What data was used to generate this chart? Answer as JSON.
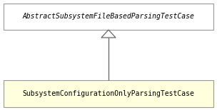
{
  "parent_class": "AbstractSubsystemFileBasedParsingTestCase",
  "child_class": "SubsystemConfigurationOnlyParsingTestCase",
  "parent_bg": "#ffffff",
  "child_bg": "#ffffdd",
  "border_color": "#999999",
  "text_color": "#000000",
  "arrow_color": "#666666",
  "font_size": 7.0,
  "fig_bg": "#ffffff",
  "fig_width": 3.04,
  "fig_height": 1.55,
  "dpi": 100
}
